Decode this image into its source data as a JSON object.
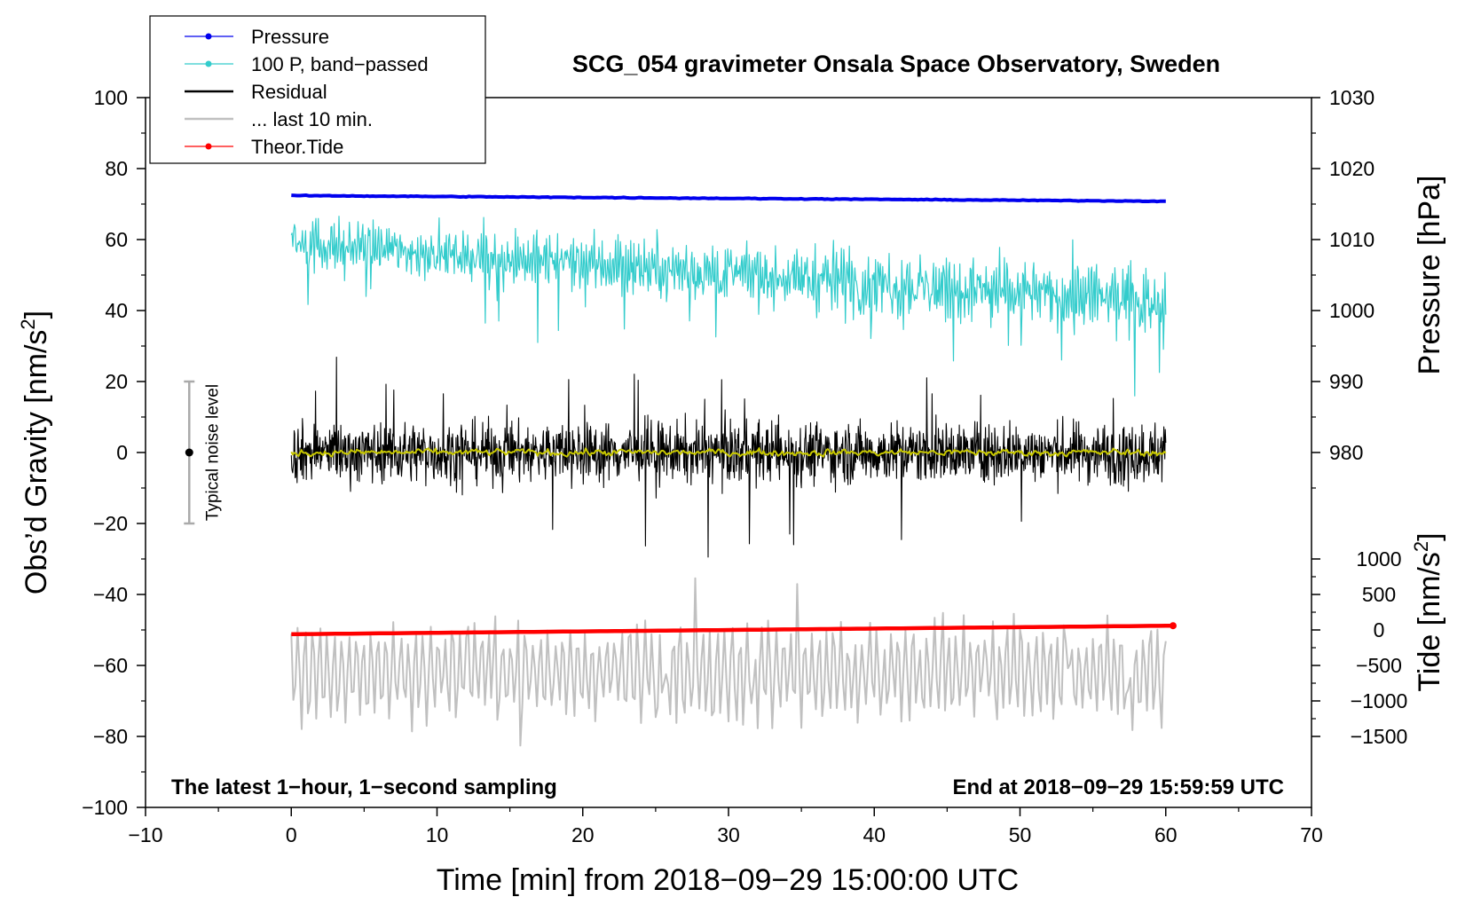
{
  "chart_data": {
    "type": "line",
    "title": "SCG_054 gravimeter Onsala Space Observatory, Sweden",
    "xlabel": "Time [min] from 2018−09−29 15:00:00 UTC",
    "ylabel_left": "Obs’d Gravity [nm/s",
    "ylabel_left_sup": "2",
    "ylabel_left_end": "]",
    "ylabel_right_pressure": "Pressure [hPa]",
    "ylabel_right_tide": "Tide [nm/s",
    "ylabel_right_tide_sup": "2",
    "ylabel_right_tide_end": "]",
    "xlim": [
      -10,
      70
    ],
    "ylim": [
      -100,
      100
    ],
    "x_ticks": [
      {
        "value": -10,
        "label": "−10"
      },
      {
        "value": 0,
        "label": "0"
      },
      {
        "value": 10,
        "label": "10"
      },
      {
        "value": 20,
        "label": "20"
      },
      {
        "value": 30,
        "label": "30"
      },
      {
        "value": 40,
        "label": "40"
      },
      {
        "value": 50,
        "label": "50"
      },
      {
        "value": 60,
        "label": "60"
      },
      {
        "value": 70,
        "label": "70"
      }
    ],
    "y_ticks": [
      {
        "value": 100,
        "label": "100"
      },
      {
        "value": 80,
        "label": "80"
      },
      {
        "value": 60,
        "label": "60"
      },
      {
        "value": 40,
        "label": "40"
      },
      {
        "value": 20,
        "label": "20"
      },
      {
        "value": 0,
        "label": "0"
      },
      {
        "value": -20,
        "label": "−20"
      },
      {
        "value": -40,
        "label": "−40"
      },
      {
        "value": -60,
        "label": "−60"
      },
      {
        "value": -80,
        "label": "−80"
      },
      {
        "value": -100,
        "label": "−100"
      }
    ],
    "pressure_axis": {
      "gravity_per_hpa": 2,
      "gravity_offset": 40,
      "offset_hpa": 1000,
      "ticks": [
        {
          "value": 1030,
          "label": "1030"
        },
        {
          "value": 1020,
          "label": "1020"
        },
        {
          "value": 1010,
          "label": "1010"
        },
        {
          "value": 1000,
          "label": "1000"
        },
        {
          "value": 990,
          "label": "990"
        },
        {
          "value": 980,
          "label": "980"
        }
      ]
    },
    "tide_axis": {
      "gravity_per_nms2": 0.02,
      "gravity_offset": -50,
      "ticks": [
        {
          "value": 1000,
          "label": "1000"
        },
        {
          "value": 500,
          "label": "500"
        },
        {
          "value": 0,
          "label": "0"
        },
        {
          "value": -500,
          "label": "−500"
        },
        {
          "value": -1000,
          "label": "−1000"
        },
        {
          "value": -1500,
          "label": "−1500"
        }
      ]
    },
    "series": [
      {
        "name": "Pressure",
        "color": "#0000ee",
        "unit": "hPa",
        "x_range": [
          0,
          60
        ],
        "start": 1016.2,
        "end": 1015.4,
        "rendered_as": "thick line"
      },
      {
        "name": "100 P, band−passed",
        "color": "#33cccc",
        "x_range": [
          0,
          60
        ],
        "center_start": 59,
        "center_end": 42,
        "amplitude": 6,
        "rendered_as": "noisy line"
      },
      {
        "name": "Residual",
        "color": "#000000",
        "x_range": [
          0,
          60
        ],
        "center": 0,
        "amplitude": 10,
        "rendered_as": "noisy line"
      },
      {
        "name": "Residual smoothed",
        "color": "#c8c800",
        "x_range": [
          0,
          60
        ],
        "center": 0,
        "amplitude": 1,
        "rendered_as": "thin line"
      },
      {
        "name": "... last 10 min.",
        "color": "#c0c0c0",
        "x_range": [
          0,
          60
        ],
        "center": -62,
        "amplitude": 10,
        "rendered_as": "oscillating line"
      },
      {
        "name": "Theor.Tide",
        "color": "#ff0000",
        "unit": "nm/s2",
        "x_range": [
          0,
          60.5
        ],
        "start": -60,
        "end": 60,
        "rendered_as": "thick line"
      }
    ],
    "legend": {
      "placement": "top-left",
      "entries": [
        {
          "label": "Pressure",
          "color": "#0000ee",
          "marker": true
        },
        {
          "label": "100 P, band−passed",
          "color": "#33cccc",
          "marker": true
        },
        {
          "label": "Residual",
          "color": "#000000",
          "marker": false
        },
        {
          "label": "... last 10 min.",
          "color": "#c0c0c0",
          "marker": false
        },
        {
          "label": "Theor.Tide",
          "color": "#ff0000",
          "marker": true
        }
      ]
    },
    "noise_bar": {
      "label": "Typical noise level",
      "x": -7,
      "y": 0,
      "range": [
        -20,
        20
      ]
    },
    "annotations": {
      "left": "The latest 1−hour, 1−second sampling",
      "right": "End at 2018−09−29 15:59:59 UTC"
    }
  }
}
